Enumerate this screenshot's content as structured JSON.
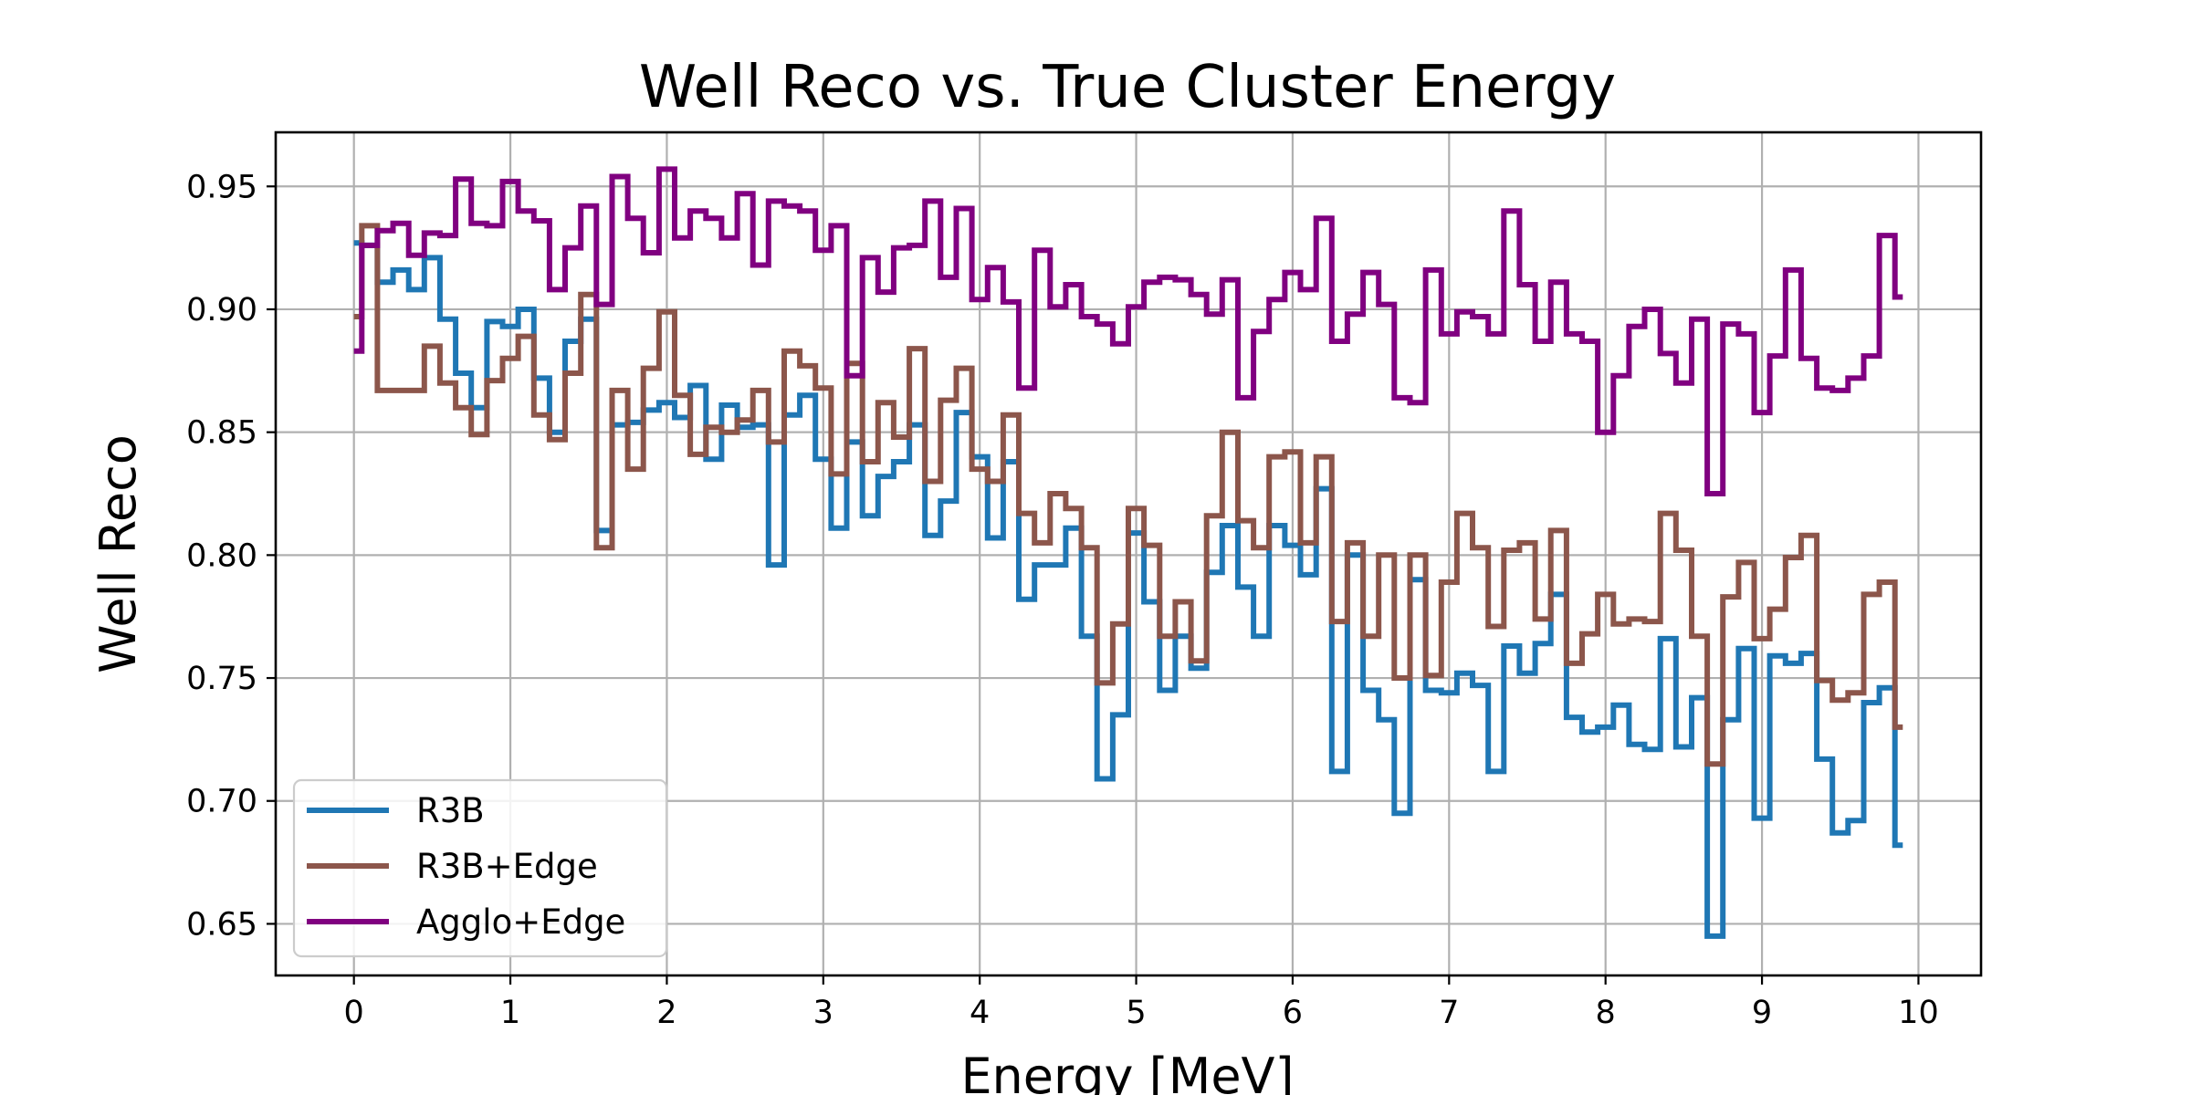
{
  "chart_data": {
    "type": "line",
    "drawstyle": "steps",
    "title": "Well Reco  vs. True Cluster Energy",
    "xlabel": "Energy [MeV]",
    "ylabel": "Well Reco",
    "xlim": [
      -0.5,
      10.4
    ],
    "ylim": [
      0.629,
      0.972
    ],
    "xticks": [
      0,
      1,
      2,
      3,
      4,
      5,
      6,
      7,
      8,
      9,
      10
    ],
    "xtick_labels": [
      "0",
      "1",
      "2",
      "3",
      "4",
      "5",
      "6",
      "7",
      "8",
      "9",
      "10"
    ],
    "yticks": [
      0.65,
      0.7,
      0.75,
      0.8,
      0.85,
      0.9,
      0.95
    ],
    "ytick_labels": [
      "0.65",
      "0.70",
      "0.75",
      "0.80",
      "0.85",
      "0.90",
      "0.95"
    ],
    "grid": true,
    "legend_position": "lower-left",
    "x": [
      0.0,
      0.1,
      0.2,
      0.3,
      0.4,
      0.5,
      0.6,
      0.7,
      0.8,
      0.9,
      1.0,
      1.1,
      1.2,
      1.3,
      1.4,
      1.5,
      1.6,
      1.7,
      1.8,
      1.9,
      2.0,
      2.1,
      2.2,
      2.3,
      2.4,
      2.5,
      2.6,
      2.7,
      2.8,
      2.9,
      3.0,
      3.1,
      3.2,
      3.3,
      3.4,
      3.5,
      3.6,
      3.7,
      3.8,
      3.9,
      4.0,
      4.1,
      4.2,
      4.3,
      4.4,
      4.5,
      4.6,
      4.7,
      4.8,
      4.9,
      5.0,
      5.1,
      5.2,
      5.3,
      5.4,
      5.5,
      5.6,
      5.7,
      5.8,
      5.9,
      6.0,
      6.1,
      6.2,
      6.3,
      6.4,
      6.5,
      6.6,
      6.7,
      6.8,
      6.9,
      7.0,
      7.1,
      7.2,
      7.3,
      7.4,
      7.5,
      7.6,
      7.7,
      7.8,
      7.9,
      8.0,
      8.1,
      8.2,
      8.3,
      8.4,
      8.5,
      8.6,
      8.7,
      8.8,
      8.9,
      9.0,
      9.1,
      9.2,
      9.3,
      9.4,
      9.5,
      9.6,
      9.7,
      9.8,
      9.9
    ],
    "series": [
      {
        "name": "R3B",
        "color": "#1f77b4",
        "values": [
          0.927,
          0.926,
          0.911,
          0.916,
          0.908,
          0.921,
          0.896,
          0.874,
          0.86,
          0.895,
          0.893,
          0.9,
          0.872,
          0.85,
          0.887,
          0.896,
          0.81,
          0.853,
          0.854,
          0.859,
          0.862,
          0.856,
          0.869,
          0.839,
          0.861,
          0.852,
          0.853,
          0.796,
          0.857,
          0.865,
          0.839,
          0.811,
          0.846,
          0.816,
          0.832,
          0.838,
          0.853,
          0.808,
          0.822,
          0.858,
          0.84,
          0.807,
          0.838,
          0.782,
          0.796,
          0.796,
          0.811,
          0.767,
          0.709,
          0.735,
          0.809,
          0.781,
          0.745,
          0.767,
          0.754,
          0.793,
          0.812,
          0.787,
          0.767,
          0.812,
          0.804,
          0.792,
          0.827,
          0.712,
          0.8,
          0.745,
          0.733,
          0.695,
          0.79,
          0.745,
          0.744,
          0.752,
          0.747,
          0.712,
          0.763,
          0.752,
          0.764,
          0.784,
          0.734,
          0.728,
          0.73,
          0.739,
          0.723,
          0.721,
          0.766,
          0.722,
          0.742,
          0.645,
          0.733,
          0.762,
          0.693,
          0.759,
          0.756,
          0.76,
          0.717,
          0.687,
          0.692,
          0.74,
          0.746,
          0.682
        ]
      },
      {
        "name": "R3B+Edge",
        "color": "#8c564b",
        "values": [
          0.897,
          0.934,
          0.867,
          0.867,
          0.867,
          0.885,
          0.87,
          0.86,
          0.849,
          0.871,
          0.88,
          0.889,
          0.857,
          0.847,
          0.874,
          0.906,
          0.803,
          0.867,
          0.835,
          0.876,
          0.899,
          0.865,
          0.841,
          0.852,
          0.85,
          0.855,
          0.867,
          0.846,
          0.883,
          0.877,
          0.868,
          0.833,
          0.878,
          0.838,
          0.862,
          0.848,
          0.884,
          0.83,
          0.863,
          0.876,
          0.835,
          0.83,
          0.857,
          0.817,
          0.805,
          0.825,
          0.819,
          0.803,
          0.748,
          0.772,
          0.819,
          0.804,
          0.767,
          0.781,
          0.757,
          0.816,
          0.85,
          0.814,
          0.803,
          0.84,
          0.842,
          0.805,
          0.84,
          0.773,
          0.805,
          0.767,
          0.8,
          0.75,
          0.8,
          0.751,
          0.789,
          0.817,
          0.803,
          0.771,
          0.802,
          0.805,
          0.774,
          0.81,
          0.756,
          0.768,
          0.784,
          0.772,
          0.774,
          0.773,
          0.817,
          0.802,
          0.767,
          0.715,
          0.783,
          0.797,
          0.766,
          0.778,
          0.799,
          0.808,
          0.749,
          0.741,
          0.744,
          0.784,
          0.789,
          0.73
        ]
      },
      {
        "name": "Agglo+Edge",
        "color": "#800080",
        "values": [
          0.883,
          0.926,
          0.932,
          0.935,
          0.922,
          0.931,
          0.93,
          0.953,
          0.935,
          0.934,
          0.952,
          0.94,
          0.936,
          0.908,
          0.925,
          0.942,
          0.902,
          0.954,
          0.937,
          0.923,
          0.957,
          0.929,
          0.94,
          0.937,
          0.929,
          0.947,
          0.918,
          0.944,
          0.942,
          0.94,
          0.924,
          0.934,
          0.873,
          0.921,
          0.907,
          0.925,
          0.926,
          0.944,
          0.913,
          0.941,
          0.904,
          0.917,
          0.903,
          0.868,
          0.924,
          0.901,
          0.91,
          0.897,
          0.894,
          0.886,
          0.901,
          0.911,
          0.913,
          0.912,
          0.906,
          0.898,
          0.912,
          0.864,
          0.891,
          0.904,
          0.915,
          0.908,
          0.937,
          0.887,
          0.898,
          0.915,
          0.902,
          0.864,
          0.862,
          0.916,
          0.89,
          0.899,
          0.897,
          0.89,
          0.94,
          0.91,
          0.887,
          0.911,
          0.89,
          0.887,
          0.85,
          0.873,
          0.893,
          0.9,
          0.882,
          0.87,
          0.896,
          0.825,
          0.894,
          0.89,
          0.858,
          0.881,
          0.916,
          0.88,
          0.868,
          0.867,
          0.872,
          0.881,
          0.93,
          0.905
        ]
      }
    ]
  }
}
